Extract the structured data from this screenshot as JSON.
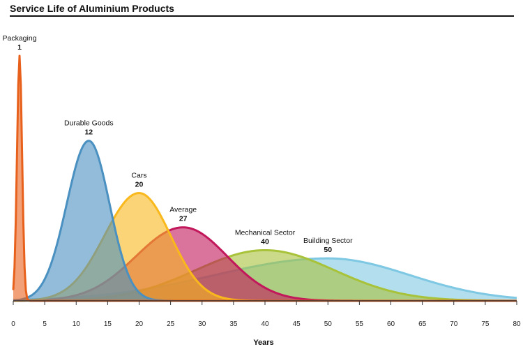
{
  "chart_data": {
    "type": "area",
    "title": "Service Life of Aluminium Products",
    "xlabel": "Years",
    "ylabel": "",
    "xlim": [
      0,
      80
    ],
    "xticks": [
      0,
      5,
      10,
      15,
      20,
      25,
      30,
      35,
      40,
      45,
      50,
      55,
      60,
      65,
      70,
      75,
      80
    ],
    "grid": false,
    "series": [
      {
        "name": "Building Sector",
        "peak_year": 50,
        "peak_label": "50",
        "peak_height": 0.26,
        "sigma_left": 18,
        "sigma_right": 13,
        "color": "#7ec8e3"
      },
      {
        "name": "Mechanical Sector",
        "peak_year": 40,
        "peak_label": "40",
        "peak_height": 0.31,
        "sigma_left": 11,
        "sigma_right": 11,
        "color": "#a8c23a"
      },
      {
        "name": "Average",
        "peak_year": 27,
        "peak_label": "27",
        "peak_height": 0.45,
        "sigma_left": 7.5,
        "sigma_right": 7,
        "color": "#c2185b"
      },
      {
        "name": "Cars",
        "peak_year": 20,
        "peak_label": "20",
        "peak_height": 0.66,
        "sigma_left": 5.5,
        "sigma_right": 5,
        "color": "#f9b81c"
      },
      {
        "name": "Durable Goods",
        "peak_year": 12,
        "peak_label": "12",
        "peak_height": 0.98,
        "sigma_left": 3.5,
        "sigma_right": 3.3,
        "color": "#4a90c0"
      },
      {
        "name": "Packaging",
        "peak_year": 1,
        "peak_label": "1",
        "peak_height": 1.5,
        "sigma_left": 0.4,
        "sigma_right": 0.4,
        "color": "#e8611c"
      }
    ]
  }
}
